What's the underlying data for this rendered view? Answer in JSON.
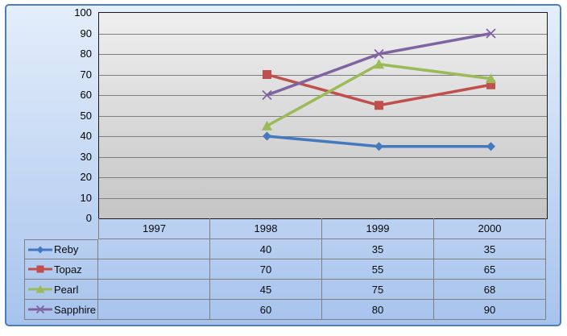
{
  "chart_data": {
    "type": "line",
    "title": "",
    "xlabel": "",
    "ylabel": "",
    "categories": [
      "1997",
      "1998",
      "1999",
      "2000"
    ],
    "series": [
      {
        "name": "Reby",
        "color": "#4579bd",
        "marker": "diamond",
        "values": [
          null,
          40,
          35,
          35
        ]
      },
      {
        "name": "Topaz",
        "color": "#c0504d",
        "marker": "square",
        "values": [
          null,
          70,
          55,
          65
        ]
      },
      {
        "name": "Pearl",
        "color": "#9bbb59",
        "marker": "triangle",
        "values": [
          null,
          45,
          75,
          68
        ]
      },
      {
        "name": "Sapphire",
        "color": "#8064a2",
        "marker": "x",
        "values": [
          null,
          60,
          80,
          90
        ]
      }
    ],
    "ylim": [
      0,
      100
    ],
    "ytick_step": 10,
    "yticks": [
      "100",
      "90",
      "80",
      "70",
      "60",
      "50",
      "40",
      "30",
      "20",
      "10",
      "0"
    ],
    "grid": "horizontal",
    "legend_position": "table-left"
  },
  "colors": {
    "chart_border": "#4a7ebc",
    "chart_bg_top": "#e4eefb",
    "chart_bg_bottom": "#a7c3ed",
    "plot_border": "#1a1a1a",
    "plot_bg_top": "#efefef",
    "plot_bg_bottom": "#c5c5c5",
    "gridline": "#7f7f7f",
    "table_border": "#808080",
    "text": "#000000"
  }
}
